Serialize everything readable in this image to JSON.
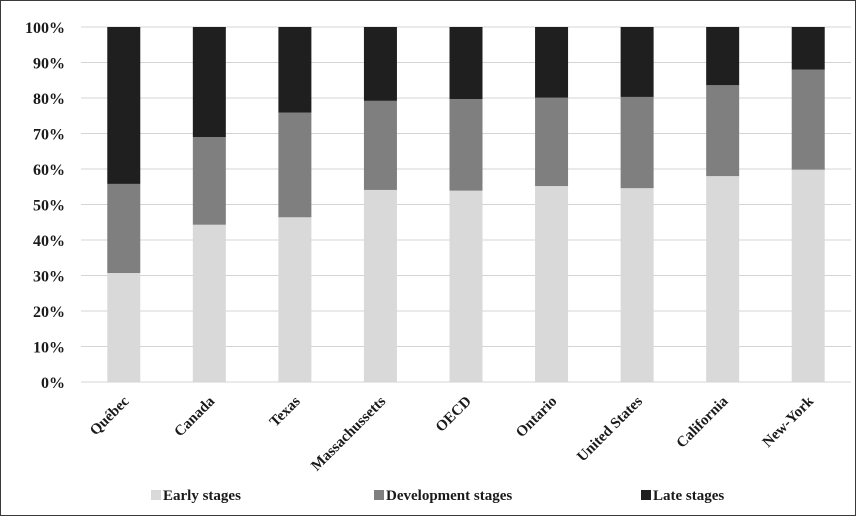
{
  "chart_data": {
    "type": "bar",
    "stacked": true,
    "categories": [
      "Québec",
      "Canada",
      "Texas",
      "Massachussetts",
      "OECD",
      "Ontario",
      "United States",
      "California",
      "New-York"
    ],
    "series": [
      {
        "name": "Early stages",
        "color": "#d9d9d9",
        "values": [
          30.7,
          44.3,
          46.4,
          54.1,
          53.9,
          55.2,
          54.6,
          58.0,
          59.8
        ]
      },
      {
        "name": "Development stages",
        "color": "#7f7f7f",
        "values": [
          25.1,
          24.7,
          29.5,
          25.1,
          25.8,
          24.9,
          25.7,
          25.6,
          28.2
        ]
      },
      {
        "name": "Late stages",
        "color": "#1f1f1f",
        "values": [
          44.2,
          31.0,
          24.1,
          20.8,
          20.3,
          19.9,
          19.7,
          16.4,
          12.0
        ]
      }
    ],
    "yticks": [
      "0%",
      "10%",
      "20%",
      "30%",
      "40%",
      "50%",
      "60%",
      "70%",
      "80%",
      "90%",
      "100%"
    ],
    "ylim": [
      0,
      100
    ],
    "title": "",
    "xlabel": "",
    "ylabel": "",
    "grid": true,
    "legend_position": "bottom"
  }
}
